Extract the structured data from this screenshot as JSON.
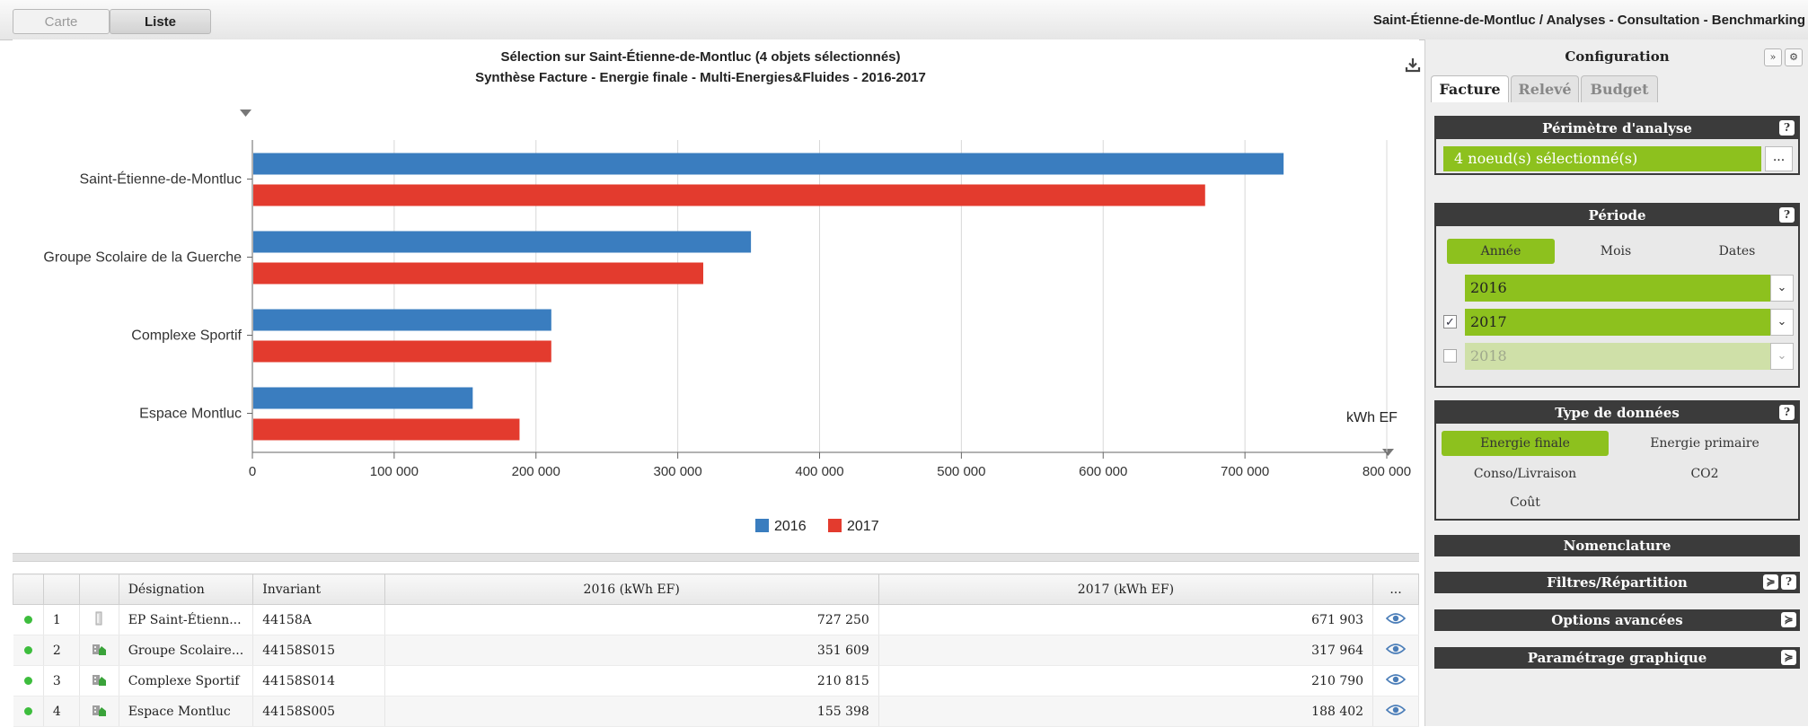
{
  "topbar": {
    "tabs": [
      {
        "label": "Carte"
      },
      {
        "label": "Liste"
      }
    ],
    "breadcrumb": "Saint-Étienne-de-Montluc / Analyses - Consultation - Benchmarking"
  },
  "chart_data": {
    "type": "bar",
    "orientation": "horizontal",
    "title": "Sélection sur Saint-Étienne-de-Montluc (4 objets sélectionnés)",
    "subtitle": "Synthèse Facture - Energie finale - Multi-Energies&Fluides - 2016-2017",
    "categories": [
      "Saint-Étienne-de-Montluc",
      "Groupe Scolaire de la Guerche",
      "Complexe Sportif",
      "Espace Montluc"
    ],
    "series": [
      {
        "name": "2016",
        "color": "#3a7dbf",
        "values": [
          727250,
          351609,
          210815,
          155398
        ]
      },
      {
        "name": "2017",
        "color": "#e33b2e",
        "values": [
          671903,
          317964,
          210790,
          188402
        ]
      }
    ],
    "xlim": [
      0,
      800000
    ],
    "xticks": [
      "0",
      "100 000",
      "200 000",
      "300 000",
      "400 000",
      "500 000",
      "600 000",
      "700 000",
      "800 000"
    ],
    "unit_label": "kWh EF",
    "grid": true,
    "legend_position": "bottom-center"
  },
  "table": {
    "headers": [
      "",
      "",
      "",
      "Désignation",
      "Invariant",
      "2016 (kWh EF)",
      "2017 (kWh EF)",
      "..."
    ],
    "rows": [
      {
        "num": "1",
        "designation": "EP Saint-Étienn...",
        "invariant": "44158A",
        "v2016": "727 250",
        "v2017": "671 903",
        "icon": "lamp-icon"
      },
      {
        "num": "2",
        "designation": "Groupe Scolaire...",
        "invariant": "44158S015",
        "v2016": "351 609",
        "v2017": "317 964",
        "icon": "building-icon"
      },
      {
        "num": "3",
        "designation": "Complexe Sportif",
        "invariant": "44158S014",
        "v2016": "210 815",
        "v2017": "210 790",
        "icon": "building-icon"
      },
      {
        "num": "4",
        "designation": "Espace Montluc",
        "invariant": "44158S005",
        "v2016": "155 398",
        "v2017": "188 402",
        "icon": "building-icon"
      }
    ]
  },
  "config": {
    "title": "Configuration",
    "tabs": [
      "Facture",
      "Relevé",
      "Budget"
    ],
    "perimetre": {
      "title": "Périmètre d'analyse",
      "value": "4 noeud(s) sélectionné(s)",
      "more": "..."
    },
    "periode": {
      "title": "Période",
      "options": [
        "Année",
        "Mois",
        "Dates"
      ],
      "years": [
        {
          "label": "2016",
          "checkbox": false,
          "checked": false,
          "enabled": true
        },
        {
          "label": "2017",
          "checkbox": true,
          "checked": true,
          "enabled": true
        },
        {
          "label": "2018",
          "checkbox": true,
          "checked": false,
          "enabled": false
        }
      ]
    },
    "type_donnees": {
      "title": "Type de données",
      "options": [
        "Energie finale",
        "Energie primaire",
        "Conso/Livraison",
        "CO2",
        "Coût"
      ]
    },
    "sections": [
      "Nomenclature",
      "Filtres/Répartition",
      "Options avancées",
      "Paramétrage graphique"
    ],
    "help": "?"
  }
}
